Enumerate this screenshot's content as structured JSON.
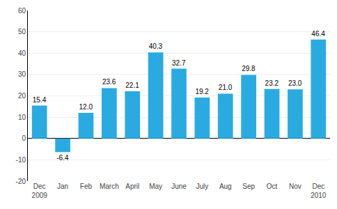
{
  "chart_data": {
    "type": "bar",
    "categories": [
      "Dec\n2009",
      "Jan",
      "Feb",
      "March",
      "April",
      "May",
      "June",
      "July",
      "Aug",
      "Sep",
      "Oct",
      "Nov",
      "Dec\n2010"
    ],
    "values": [
      15.4,
      -6.4,
      12.0,
      23.6,
      22.1,
      40.3,
      32.7,
      19.2,
      21.0,
      29.8,
      23.2,
      23.0,
      46.4
    ],
    "value_labels": [
      "15.4",
      "-6.4",
      "12.0",
      "23.6",
      "22.1",
      "40.3",
      "32.7",
      "19.2",
      "21.0",
      "29.8",
      "23.2",
      "23.0",
      "46.4"
    ],
    "data_labels": true,
    "color": "#29abe2",
    "ylim": [
      -20,
      60
    ],
    "yticks": [
      -20,
      -10,
      0,
      10,
      20,
      30,
      40,
      50,
      60
    ],
    "grid": true
  }
}
